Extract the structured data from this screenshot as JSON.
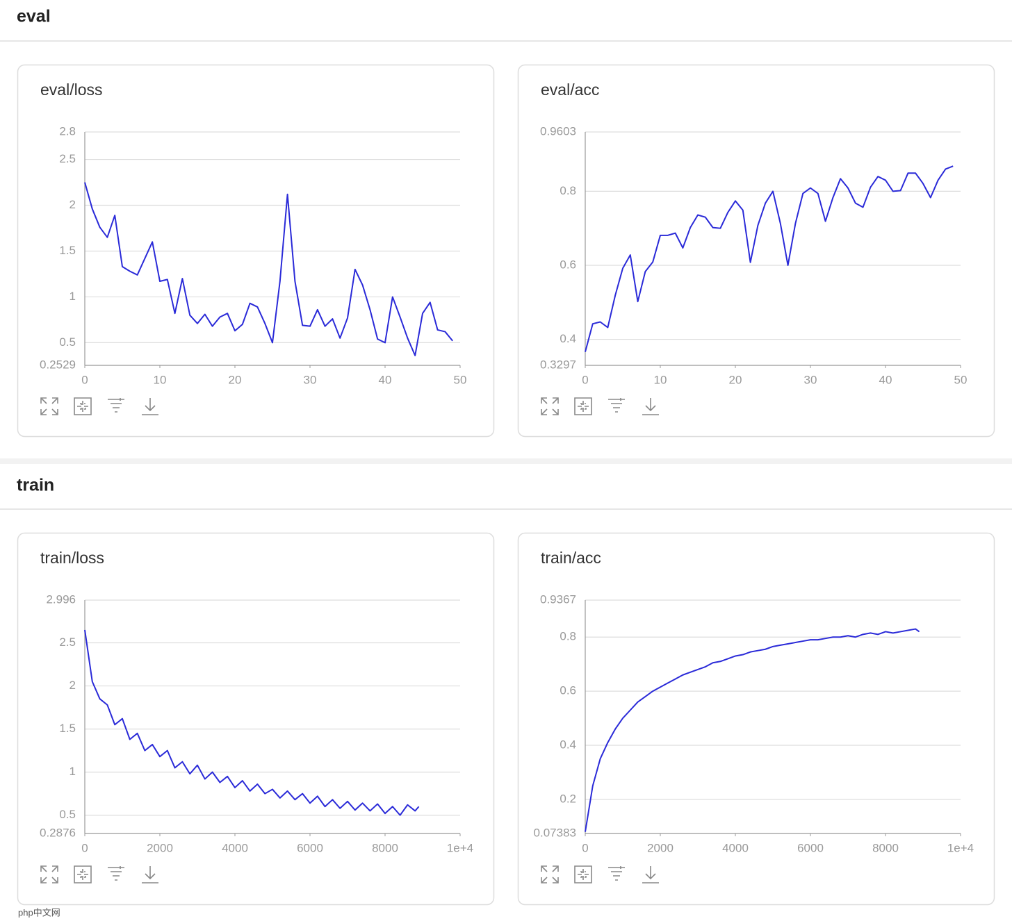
{
  "sections": [
    {
      "title": "eval"
    },
    {
      "title": "train"
    }
  ],
  "watermark": "php中文网",
  "chart_data": [
    {
      "type": "line",
      "title": "eval/loss",
      "color": "#2a2ad8",
      "grid": true,
      "x": [
        0,
        1,
        2,
        3,
        4,
        5,
        6,
        7,
        8,
        9,
        10,
        11,
        12,
        13,
        14,
        15,
        16,
        17,
        18,
        19,
        20,
        21,
        22,
        23,
        24,
        25,
        26,
        27,
        28,
        29,
        30,
        31,
        32,
        33,
        34,
        35,
        36,
        37,
        38,
        39,
        40,
        41,
        42,
        43,
        44,
        45,
        46,
        47,
        48,
        49
      ],
      "values": [
        2.25,
        1.96,
        1.76,
        1.65,
        1.89,
        1.33,
        1.28,
        1.24,
        1.42,
        1.6,
        1.17,
        1.19,
        0.82,
        1.2,
        0.8,
        0.71,
        0.81,
        0.68,
        0.78,
        0.82,
        0.63,
        0.7,
        0.93,
        0.89,
        0.71,
        0.5,
        1.17,
        2.12,
        1.17,
        0.69,
        0.68,
        0.86,
        0.68,
        0.76,
        0.55,
        0.77,
        1.3,
        1.13,
        0.86,
        0.54,
        0.5,
        1.0,
        0.78,
        0.55,
        0.36,
        0.82,
        0.94,
        0.64,
        0.62,
        0.52
      ],
      "xlim": [
        0,
        50
      ],
      "xticks": [
        0,
        10,
        20,
        30,
        40,
        50
      ],
      "ylim": [
        0.2529,
        2.8
      ],
      "yticks": [
        0.2529,
        0.5,
        1,
        1.5,
        2,
        2.5,
        2.8
      ]
    },
    {
      "type": "line",
      "title": "eval/acc",
      "color": "#2a2ad8",
      "grid": true,
      "x": [
        0,
        1,
        2,
        3,
        4,
        5,
        6,
        7,
        8,
        9,
        10,
        11,
        12,
        13,
        14,
        15,
        16,
        17,
        18,
        19,
        20,
        21,
        22,
        23,
        24,
        25,
        26,
        27,
        28,
        29,
        30,
        31,
        32,
        33,
        34,
        35,
        36,
        37,
        38,
        39,
        40,
        41,
        42,
        43,
        44,
        45,
        46,
        47,
        48,
        49
      ],
      "values": [
        0.366,
        0.442,
        0.447,
        0.432,
        0.519,
        0.592,
        0.628,
        0.502,
        0.583,
        0.609,
        0.681,
        0.681,
        0.687,
        0.647,
        0.702,
        0.736,
        0.73,
        0.702,
        0.7,
        0.743,
        0.774,
        0.749,
        0.608,
        0.708,
        0.768,
        0.8,
        0.713,
        0.6,
        0.713,
        0.794,
        0.809,
        0.794,
        0.719,
        0.783,
        0.834,
        0.809,
        0.768,
        0.757,
        0.811,
        0.84,
        0.83,
        0.8,
        0.802,
        0.849,
        0.849,
        0.821,
        0.783,
        0.83,
        0.86,
        0.868
      ],
      "xlim": [
        0,
        50
      ],
      "xticks": [
        0,
        10,
        20,
        30,
        40,
        50
      ],
      "ylim": [
        0.3297,
        0.9603
      ],
      "yticks": [
        0.3297,
        0.4,
        0.6,
        0.8,
        0.9603
      ]
    },
    {
      "type": "line",
      "title": "train/loss",
      "color": "#2a2ad8",
      "grid": true,
      "x": [
        0,
        200,
        400,
        600,
        800,
        1000,
        1200,
        1400,
        1600,
        1800,
        2000,
        2200,
        2400,
        2600,
        2800,
        3000,
        3200,
        3400,
        3600,
        3800,
        4000,
        4200,
        4400,
        4600,
        4800,
        5000,
        5200,
        5400,
        5600,
        5800,
        6000,
        6200,
        6400,
        6600,
        6800,
        7000,
        7200,
        7400,
        7600,
        7800,
        8000,
        8200,
        8400,
        8600,
        8800,
        8900
      ],
      "values": [
        2.65,
        2.05,
        1.85,
        1.78,
        1.55,
        1.62,
        1.38,
        1.45,
        1.25,
        1.32,
        1.18,
        1.25,
        1.05,
        1.12,
        0.98,
        1.08,
        0.92,
        1.0,
        0.88,
        0.95,
        0.82,
        0.9,
        0.78,
        0.86,
        0.75,
        0.8,
        0.7,
        0.78,
        0.68,
        0.75,
        0.64,
        0.72,
        0.6,
        0.68,
        0.58,
        0.66,
        0.56,
        0.64,
        0.55,
        0.63,
        0.52,
        0.6,
        0.5,
        0.62,
        0.55,
        0.6
      ],
      "xlim": [
        0,
        10000
      ],
      "xticks": [
        0,
        2000,
        4000,
        6000,
        8000,
        {
          "value": 10000,
          "label": "1e+4"
        }
      ],
      "ylim": [
        0.2876,
        2.996
      ],
      "yticks": [
        0.2876,
        0.5,
        1,
        1.5,
        2,
        2.5,
        2.996
      ]
    },
    {
      "type": "line",
      "title": "train/acc",
      "color": "#2a2ad8",
      "grid": true,
      "x": [
        0,
        200,
        400,
        600,
        800,
        1000,
        1200,
        1400,
        1600,
        1800,
        2000,
        2200,
        2400,
        2600,
        2800,
        3000,
        3200,
        3400,
        3600,
        3800,
        4000,
        4200,
        4400,
        4600,
        4800,
        5000,
        5200,
        5400,
        5600,
        5800,
        6000,
        6200,
        6400,
        6600,
        6800,
        7000,
        7200,
        7400,
        7600,
        7800,
        8000,
        8200,
        8400,
        8600,
        8800,
        8900
      ],
      "values": [
        0.08,
        0.25,
        0.35,
        0.41,
        0.46,
        0.5,
        0.53,
        0.56,
        0.58,
        0.6,
        0.615,
        0.63,
        0.645,
        0.66,
        0.67,
        0.68,
        0.69,
        0.705,
        0.71,
        0.72,
        0.73,
        0.735,
        0.745,
        0.75,
        0.755,
        0.765,
        0.77,
        0.775,
        0.78,
        0.785,
        0.79,
        0.79,
        0.795,
        0.8,
        0.8,
        0.805,
        0.8,
        0.81,
        0.815,
        0.81,
        0.82,
        0.815,
        0.82,
        0.825,
        0.83,
        0.82
      ],
      "xlim": [
        0,
        10000
      ],
      "xticks": [
        0,
        2000,
        4000,
        6000,
        8000,
        {
          "value": 10000,
          "label": "1e+4"
        }
      ],
      "ylim": [
        0.07383,
        0.9367
      ],
      "yticks": [
        0.07383,
        0.2,
        0.4,
        0.6,
        0.8,
        0.9367
      ]
    }
  ]
}
